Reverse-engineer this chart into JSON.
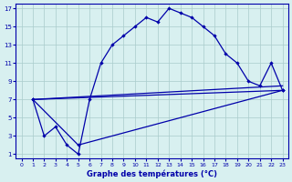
{
  "xlabel": "Graphe des températures (°C)",
  "bg_color": "#d8f0f0",
  "line_color": "#0000aa",
  "grid_color": "#aacccc",
  "xlim": [
    -0.5,
    23.5
  ],
  "ylim": [
    0.5,
    17.5
  ],
  "xticks": [
    0,
    1,
    2,
    3,
    4,
    5,
    6,
    7,
    8,
    9,
    10,
    11,
    12,
    13,
    14,
    15,
    16,
    17,
    18,
    19,
    20,
    21,
    22,
    23
  ],
  "yticks": [
    1,
    3,
    5,
    7,
    9,
    11,
    13,
    15,
    17
  ],
  "line1_x": [
    1,
    2,
    3,
    4,
    5,
    6,
    7,
    8,
    9,
    10,
    11,
    12,
    13,
    14,
    15,
    16,
    17,
    18,
    19,
    20,
    21,
    22,
    23
  ],
  "line1_y": [
    7,
    3,
    4,
    2,
    1,
    7,
    11,
    13,
    14,
    15,
    16,
    15.5,
    17,
    16.5,
    16,
    15,
    14,
    12,
    11,
    9,
    8.5,
    11,
    8
  ],
  "line2_x": [
    1,
    5,
    23
  ],
  "line2_y": [
    7,
    2,
    8
  ],
  "line3_x": [
    1,
    23
  ],
  "line3_y": [
    7,
    8
  ],
  "line4_x": [
    1,
    23
  ],
  "line4_y": [
    7,
    8.5
  ]
}
